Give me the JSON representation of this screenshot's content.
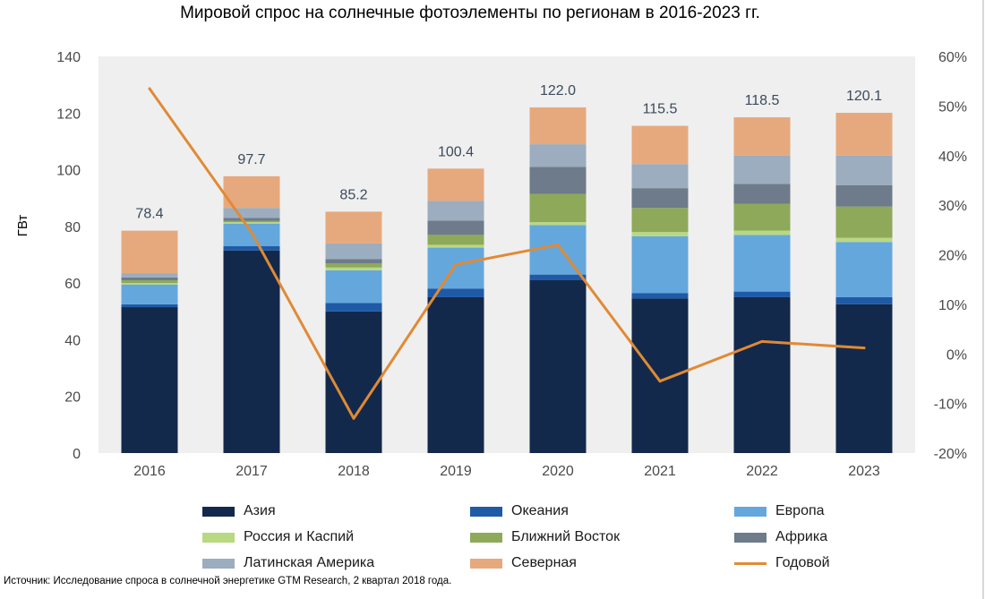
{
  "chart_data": {
    "type": "bar",
    "stacked": true,
    "title": "Мировой спрос на солнечные фотоэлементы по регионам в 2016-2023 гг.",
    "ylabel": "ГВт",
    "ylim": [
      0,
      140
    ],
    "y2lim": [
      -20,
      60
    ],
    "yticks": [
      "0",
      "20",
      "40",
      "60",
      "80",
      "100",
      "120",
      "140"
    ],
    "y2ticks": [
      "-20%",
      "-10%",
      "0%",
      "10%",
      "20%",
      "30%",
      "40%",
      "50%",
      "60%"
    ],
    "categories": [
      "2016",
      "2017",
      "2018",
      "2019",
      "2020",
      "2021",
      "2022",
      "2023"
    ],
    "totals": [
      "78.4",
      "97.7",
      "85.2",
      "100.4",
      "122.0",
      "115.5",
      "118.5",
      "120.1"
    ],
    "series": [
      {
        "name": "Азия",
        "color": "#13294b",
        "values": [
          51.5,
          71.5,
          50.0,
          55.0,
          61.0,
          54.5,
          55.0,
          52.5
        ]
      },
      {
        "name": "Океания",
        "color": "#1f5aa6",
        "values": [
          1.0,
          1.5,
          3.0,
          3.0,
          2.0,
          2.0,
          2.0,
          2.5
        ]
      },
      {
        "name": "Европа",
        "color": "#64a7dd",
        "values": [
          7.0,
          8.0,
          11.5,
          14.5,
          17.5,
          20.0,
          20.0,
          19.5
        ]
      },
      {
        "name": "Россия и Каспий",
        "color": "#b9d882",
        "values": [
          0.5,
          0.5,
          1.0,
          1.0,
          1.0,
          1.5,
          1.5,
          1.5
        ]
      },
      {
        "name": "Ближний Восток",
        "color": "#8ea95a",
        "values": [
          1.0,
          0.5,
          1.5,
          3.5,
          10.0,
          8.5,
          9.5,
          11.0
        ]
      },
      {
        "name": "Африка",
        "color": "#6d7b8a",
        "values": [
          1.0,
          1.0,
          1.5,
          5.0,
          9.5,
          7.0,
          7.0,
          7.5
        ]
      },
      {
        "name": "Латинская Америка",
        "color": "#9badbf",
        "values": [
          1.5,
          3.5,
          5.5,
          7.0,
          8.0,
          8.5,
          10.0,
          10.5
        ]
      },
      {
        "name": "Северная",
        "color": "#e6a97e",
        "values": [
          15.0,
          11.2,
          11.2,
          11.4,
          13.0,
          13.5,
          13.5,
          15.1
        ]
      }
    ],
    "line_series": {
      "name": "Годовой",
      "color": "#e08a35",
      "axis": "right",
      "values": [
        53.5,
        24.5,
        -13,
        18,
        22,
        -5.5,
        2.5,
        1.2
      ]
    },
    "grid": false,
    "legend": "bottom"
  },
  "source_note": "Источник: Исследование спроса в солнечной энергетике GTM Research, 2 квартал 2018 года."
}
